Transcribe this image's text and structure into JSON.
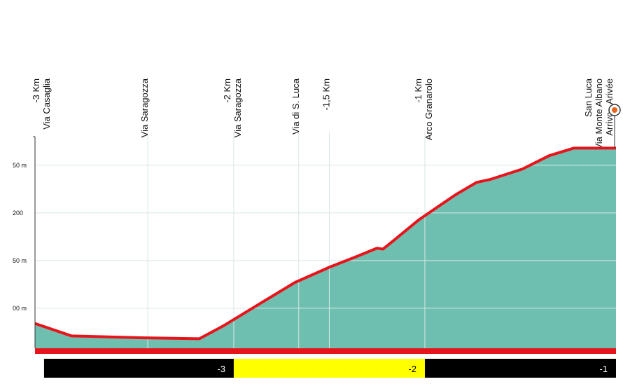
{
  "chart_data": {
    "type": "area",
    "x": [
      -3.04,
      -2.85,
      -2.49,
      -2.18,
      -2.05,
      -1.87,
      -1.68,
      -1.5,
      -1.36,
      -1.25,
      -1.22,
      -1.17,
      -1.03,
      -0.84,
      -0.73,
      -0.66,
      -0.49,
      -0.35,
      -0.22,
      -0.07,
      0
    ],
    "values": [
      84,
      71,
      69,
      68,
      82,
      104,
      127,
      143,
      154,
      163,
      162,
      170,
      193,
      219,
      232,
      235,
      246,
      260,
      268,
      268,
      268
    ],
    "color": "#6fbfb0",
    "line_color": "#e8141c",
    "xlim": [
      -3.04,
      0
    ],
    "ylim": [
      58,
      280
    ],
    "yticks": [
      {
        "value": 100,
        "label": "00 m"
      },
      {
        "value": 150,
        "label": "50 m"
      },
      {
        "value": 200,
        "label": "200"
      },
      {
        "value": 250,
        "label": "50 m"
      }
    ],
    "grid": true,
    "markers": [
      {
        "x": -3,
        "lines": [
          "-3 Km",
          "Via Casaglia"
        ]
      },
      {
        "x": -2.45,
        "lines": [
          "Via Saragozza"
        ]
      },
      {
        "x": -2,
        "lines": [
          "-2 Km",
          "Via Saragozza"
        ]
      },
      {
        "x": -1.66,
        "lines": [
          "Via di S. Luca"
        ]
      },
      {
        "x": -1.5,
        "lines": [
          "-1,5 Km"
        ]
      },
      {
        "x": -1,
        "lines": [
          "-1 Km",
          "Arco Granarolo"
        ]
      },
      {
        "x": 0,
        "lines": [
          "San Luca",
          "Via Monte Albano",
          "Arrivo - Arivée"
        ]
      }
    ],
    "km_bar": [
      "-3",
      "-2",
      "-1"
    ]
  }
}
